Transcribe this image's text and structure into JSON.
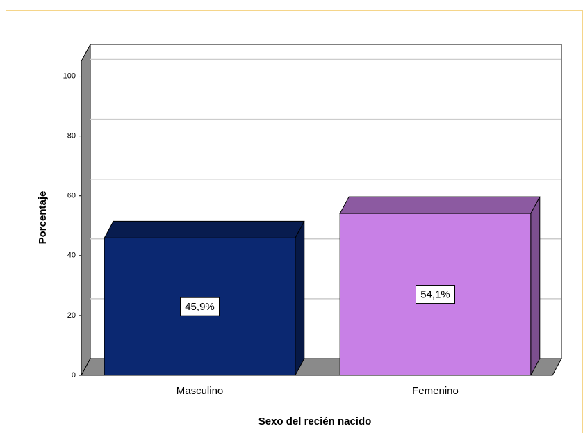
{
  "chart_data": {
    "type": "bar3d",
    "x_label": "Sexo del recién nacido",
    "y_label": "Porcentaje",
    "categories": [
      "Masculino",
      "Femenino"
    ],
    "values": [
      45.9,
      54.1
    ],
    "value_labels": [
      "45,9%",
      "54,1%"
    ],
    "colors": [
      "#0b2871",
      "#c880e6"
    ],
    "ylim": [
      0,
      105
    ],
    "yticks": [
      0,
      20,
      40,
      60,
      80,
      100
    ],
    "grid": true
  }
}
